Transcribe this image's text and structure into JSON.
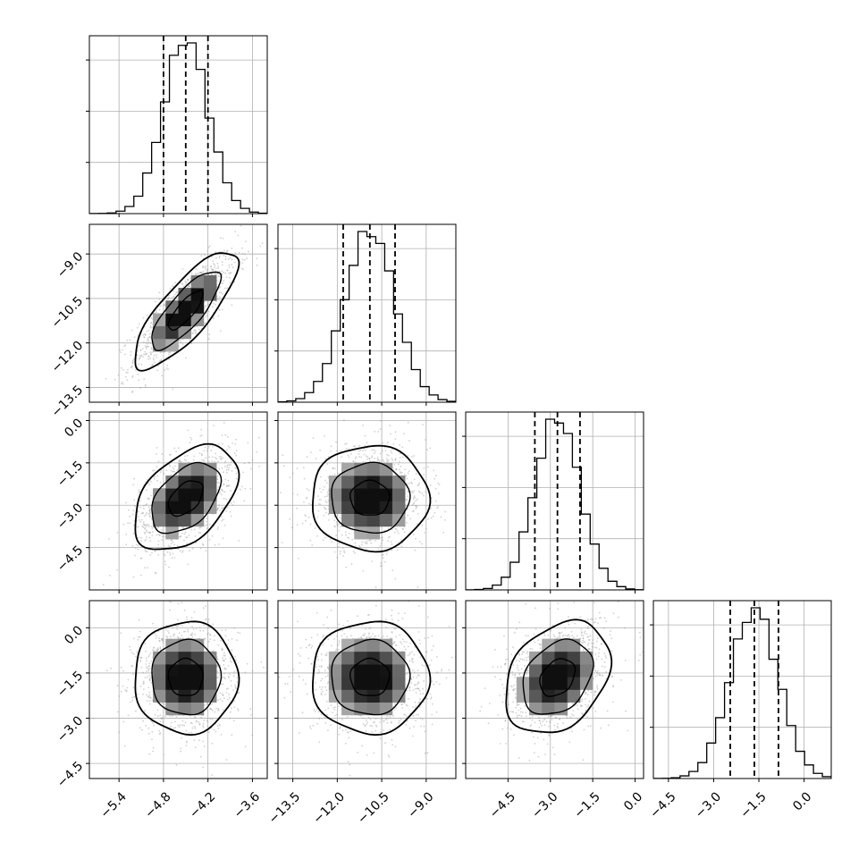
{
  "chart_data": {
    "type": "corner",
    "description_type": "histogram + 2D density corner plot with 1-sigma contours",
    "grid": true,
    "parameters": [
      {
        "id": "p0",
        "range": [
          -5.8,
          -3.4
        ],
        "ticks": [
          -5.4,
          -4.8,
          -4.2,
          -3.6
        ],
        "tick_labels": [
          "−5.4",
          "−4.8",
          "−4.2",
          "−3.6"
        ],
        "median": -4.5,
        "q16": -4.8,
        "q84": -4.2,
        "std": 0.3
      },
      {
        "id": "p1",
        "range": [
          -14.0,
          -8.0
        ],
        "ticks": [
          -13.5,
          -12.0,
          -10.5,
          -9.0
        ],
        "tick_labels": [
          "−13.5",
          "−12.0",
          "−10.5",
          "−9.0"
        ],
        "median": -10.9,
        "q16": -11.8,
        "q84": -10.05,
        "std": 0.85
      },
      {
        "id": "p2",
        "range": [
          -6.0,
          0.3
        ],
        "ticks": [
          -4.5,
          -3.0,
          -1.5,
          0.0
        ],
        "tick_labels": [
          "−4.5",
          "−3.0",
          "−1.5",
          "0.0"
        ],
        "median": -2.75,
        "q16": -3.55,
        "q84": -1.95,
        "std": 0.8
      },
      {
        "id": "p3",
        "range": [
          -5.0,
          0.9
        ],
        "ticks": [
          -4.5,
          -3.0,
          -1.5,
          0.0
        ],
        "tick_labels": [
          "−4.5",
          "−3.0",
          "−1.5",
          "0.0"
        ],
        "median": -1.65,
        "q16": -2.45,
        "q84": -0.85,
        "std": 0.8
      }
    ],
    "correlations": {
      "1-0": 0.8,
      "2-0": 0.45,
      "2-1": 0.0,
      "3-0": 0.0,
      "3-1": 0.0,
      "3-2": 0.3
    },
    "histogram_bins": 20,
    "contour_levels_sigma": [
      0.5,
      1.0,
      1.5
    ],
    "colors": {
      "line": "#000000",
      "grid": "#b0b0b0",
      "points": "#999999",
      "background": "#ffffff"
    }
  }
}
